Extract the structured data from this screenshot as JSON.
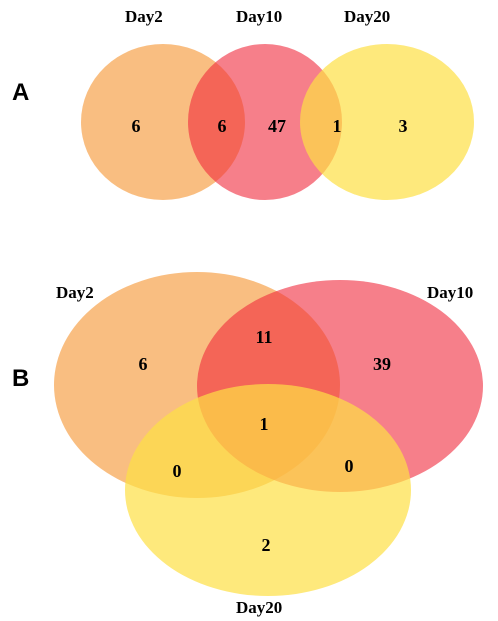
{
  "colors": {
    "day2": "#f7a24b",
    "day10": "#f0293c",
    "day20": "#fde045"
  },
  "panelA": {
    "panel_label": "A",
    "set_labels": {
      "day2": "Day2",
      "day10": "Day10",
      "day20": "Day20"
    },
    "counts": {
      "day2_only": "6",
      "day2_day10": "6",
      "day10_only": "47",
      "day10_day20": "1",
      "day20_only": "3"
    }
  },
  "panelB": {
    "panel_label": "B",
    "set_labels": {
      "day2": "Day2",
      "day10": "Day10",
      "day20": "Day20"
    },
    "counts": {
      "day2_only": "6",
      "day2_day10": "11",
      "day10_only": "39",
      "all_three": "1",
      "day2_day20": "0",
      "day10_day20": "0",
      "day20_only": "2"
    }
  }
}
